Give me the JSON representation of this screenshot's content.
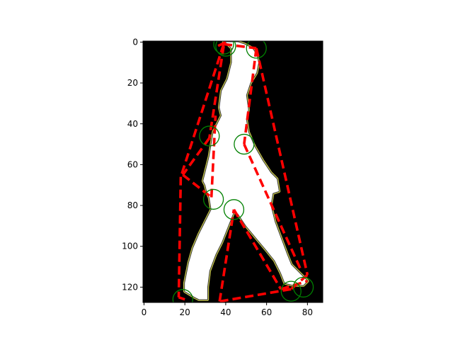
{
  "chart_data": {
    "type": "image",
    "background_color": "#000000",
    "silhouette_color": "#ffffff",
    "contour_color": "#c8c84a",
    "hull_color": "#ff0000",
    "marker_color": "#008000",
    "xlim": [
      -0.5,
      87.5
    ],
    "ylim": [
      127.5,
      -0.5
    ],
    "xticks": [
      0,
      20,
      40,
      60,
      80
    ],
    "yticks": [
      0,
      20,
      40,
      60,
      80,
      100,
      120
    ],
    "silhouette_outline": [
      [
        39,
        0
      ],
      [
        40,
        0
      ],
      [
        43,
        3
      ],
      [
        43,
        10
      ],
      [
        41,
        18
      ],
      [
        38,
        24
      ],
      [
        37,
        32
      ],
      [
        38,
        36
      ],
      [
        34,
        44
      ],
      [
        33,
        50
      ],
      [
        32,
        56
      ],
      [
        31,
        60
      ],
      [
        30,
        64
      ],
      [
        29,
        68
      ],
      [
        30,
        70
      ],
      [
        31,
        74
      ],
      [
        32,
        76
      ],
      [
        33,
        82
      ],
      [
        30,
        88
      ],
      [
        27,
        94
      ],
      [
        24,
        101
      ],
      [
        22,
        108
      ],
      [
        21,
        113
      ],
      [
        20,
        118
      ],
      [
        20,
        122
      ],
      [
        25,
        125
      ],
      [
        27,
        126
      ],
      [
        31,
        126
      ],
      [
        31,
        120
      ],
      [
        32,
        112
      ],
      [
        35,
        104
      ],
      [
        38,
        98
      ],
      [
        42,
        88
      ],
      [
        44,
        83
      ],
      [
        46,
        84
      ],
      [
        50,
        90
      ],
      [
        55,
        96
      ],
      [
        60,
        102
      ],
      [
        64,
        107
      ],
      [
        67,
        113
      ],
      [
        69,
        118
      ],
      [
        73,
        119
      ],
      [
        78,
        119
      ],
      [
        80,
        117
      ],
      [
        76,
        113
      ],
      [
        72,
        109
      ],
      [
        70,
        104
      ],
      [
        67,
        96
      ],
      [
        64,
        88
      ],
      [
        62,
        80
      ],
      [
        63,
        74
      ],
      [
        66,
        73
      ],
      [
        65,
        67
      ],
      [
        62,
        64
      ],
      [
        58,
        58
      ],
      [
        54,
        51
      ],
      [
        51,
        44
      ],
      [
        50,
        38
      ],
      [
        51,
        33
      ],
      [
        50,
        26
      ],
      [
        52,
        20
      ],
      [
        55,
        15
      ],
      [
        56,
        10
      ],
      [
        55,
        6
      ],
      [
        53,
        3
      ],
      [
        49,
        1
      ],
      [
        46,
        0
      ]
    ],
    "hull_segments": [
      [
        [
          39,
          1
        ],
        [
          18,
          66
        ]
      ],
      [
        [
          39,
          1
        ],
        [
          55,
          3
        ]
      ],
      [
        [
          55,
          3
        ],
        [
          80,
          114
        ]
      ],
      [
        [
          80,
          114
        ],
        [
          72,
          121
        ]
      ],
      [
        [
          72,
          121
        ],
        [
          37,
          127
        ]
      ],
      [
        [
          37,
          127
        ],
        [
          44,
          82
        ]
      ],
      [
        [
          44,
          82
        ],
        [
          67,
          121
        ]
      ],
      [
        [
          67,
          121
        ],
        [
          80,
          117
        ]
      ],
      [
        [
          39,
          2
        ],
        [
          32,
          47
        ]
      ],
      [
        [
          32,
          47
        ],
        [
          19,
          65
        ]
      ],
      [
        [
          19,
          65
        ],
        [
          33,
          76
        ]
      ],
      [
        [
          33,
          76
        ],
        [
          35,
          36
        ]
      ],
      [
        [
          18,
          66
        ],
        [
          17,
          125
        ]
      ],
      [
        [
          17,
          125
        ],
        [
          20,
          126
        ]
      ],
      [
        [
          55,
          3
        ],
        [
          49,
          50
        ]
      ],
      [
        [
          49,
          50
        ],
        [
          77,
          112
        ]
      ],
      [
        [
          40,
          0
        ],
        [
          36,
          2
        ]
      ]
    ],
    "markers": [
      [
        39,
        1
      ],
      [
        40,
        2
      ],
      [
        55,
        3
      ],
      [
        32,
        46
      ],
      [
        49,
        50
      ],
      [
        34,
        77
      ],
      [
        44,
        82
      ],
      [
        19,
        126
      ],
      [
        72,
        122
      ],
      [
        78,
        120
      ]
    ]
  }
}
